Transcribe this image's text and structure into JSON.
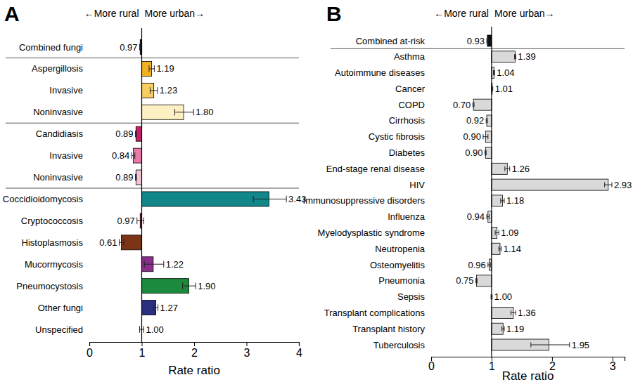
{
  "chart_data": [
    {
      "type": "bar",
      "orientation": "horizontal",
      "title": "A",
      "x_label": "Rate ratio",
      "annotations": [
        "←More rural",
        "More urban→"
      ],
      "categories": [
        "Combined fungi",
        "Aspergillosis",
        "Invasive",
        "Noninvasive",
        "Candidiasis",
        "Invasive",
        "Noninvasive",
        "Coccidioidomycosis",
        "Cryptococcosis",
        "Histoplasmosis",
        "Mucormycosis",
        "Pneumocystosis",
        "Other fungi",
        "Unspecified"
      ],
      "values": [
        0.97,
        1.19,
        1.23,
        1.8,
        0.89,
        0.84,
        0.89,
        3.43,
        0.97,
        0.61,
        1.22,
        1.9,
        1.27,
        1.0
      ],
      "value_labels": [
        "0.97",
        "1.19",
        "1.23",
        "1.80",
        "0.89",
        "0.84",
        "0.89",
        "3.43",
        "0.97",
        "0.61",
        "1.22",
        "1.90",
        "1.27",
        "1.00"
      ],
      "ci_low": [
        0.96,
        1.14,
        1.16,
        1.63,
        0.88,
        0.81,
        0.88,
        3.13,
        0.91,
        0.57,
        1.05,
        1.78,
        1.22,
        0.96
      ],
      "ci_high": [
        0.98,
        1.24,
        1.3,
        1.99,
        0.9,
        0.87,
        0.9,
        3.76,
        1.04,
        0.66,
        1.42,
        2.03,
        1.31,
        1.04
      ],
      "baseline": 1,
      "colors": [
        "#111111",
        "#f2b11f",
        "#f8cd62",
        "#fdf0c2",
        "#c81d68",
        "#e97aa9",
        "#f5c3d7",
        "#11878a",
        "#8a1c1c",
        "#7b3516",
        "#8b2d8b",
        "#1b8a3c",
        "#2b2f80",
        "#e3e3e3"
      ],
      "xlim": [
        0,
        4
      ],
      "xticks": [
        0,
        1,
        2,
        3,
        4
      ],
      "data_labels": true,
      "grid": false
    },
    {
      "type": "bar",
      "orientation": "horizontal",
      "title": "B",
      "x_label": "Rate ratio",
      "annotations": [
        "←More rural",
        "More urban→"
      ],
      "categories": [
        "Combined at-risk",
        "Asthma",
        "Autoimmune diseases",
        "Cancer",
        "COPD",
        "Cirrhosis",
        "Cystic fibrosis",
        "Diabetes",
        "End-stage renal disease",
        "HIV",
        "Immunosuppressive disorders",
        "Influenza",
        "Myelodysplastic syndrome",
        "Neutropenia",
        "Osteomyelitis",
        "Pneumonia",
        "Sepsis",
        "Transplant complications",
        "Transplant history",
        "Tuberculosis"
      ],
      "values": [
        0.93,
        1.39,
        1.04,
        1.01,
        0.7,
        0.92,
        0.9,
        0.9,
        1.26,
        2.93,
        1.18,
        0.94,
        1.09,
        1.14,
        0.96,
        0.75,
        1.0,
        1.36,
        1.19,
        1.95
      ],
      "value_labels": [
        "0.93",
        "1.39",
        "1.04",
        "1.01",
        "0.70",
        "0.92",
        "0.90",
        "0.90",
        "1.26",
        "2.93",
        "1.18",
        "0.94",
        "1.09",
        "1.14",
        "0.96",
        "0.75",
        "1.00",
        "1.36",
        "1.19",
        "1.95"
      ],
      "ci_low": [
        0.92,
        1.38,
        1.03,
        1.0,
        0.69,
        0.91,
        0.86,
        0.89,
        1.22,
        2.87,
        1.15,
        0.92,
        1.06,
        1.12,
        0.94,
        0.74,
        0.99,
        1.32,
        1.17,
        1.65
      ],
      "ci_high": [
        0.94,
        1.4,
        1.05,
        1.02,
        0.71,
        0.93,
        0.94,
        0.91,
        1.3,
        2.99,
        1.21,
        0.96,
        1.12,
        1.16,
        0.98,
        0.76,
        1.01,
        1.4,
        1.21,
        2.29
      ],
      "baseline": 1,
      "colors": [
        "#111111",
        "#d9d9d9",
        "#d9d9d9",
        "#d9d9d9",
        "#d9d9d9",
        "#d9d9d9",
        "#d9d9d9",
        "#d9d9d9",
        "#d9d9d9",
        "#d9d9d9",
        "#d9d9d9",
        "#d9d9d9",
        "#d9d9d9",
        "#d9d9d9",
        "#d9d9d9",
        "#d9d9d9",
        "#d9d9d9",
        "#d9d9d9",
        "#d9d9d9",
        "#d9d9d9"
      ],
      "xlim": [
        0,
        3.2
      ],
      "xticks": [
        0,
        1,
        2,
        3
      ],
      "data_labels": true,
      "grid": false
    }
  ]
}
